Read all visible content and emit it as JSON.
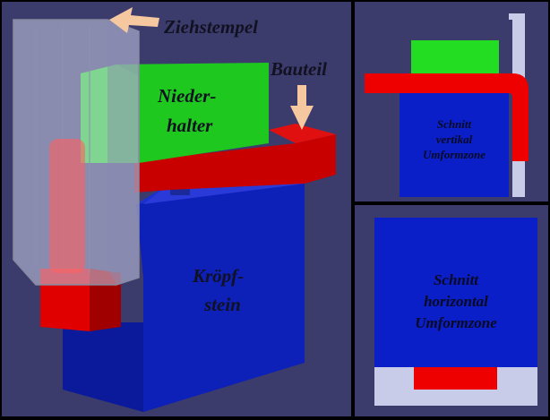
{
  "labels": {
    "ziehstempel": "Ziehstempel",
    "bauteil": "Bauteil",
    "niederhalter_1": "Nieder-",
    "niederhalter_2": "halter",
    "kroepfstein_1": "Kröpf-",
    "kroepfstein_2": "stein"
  },
  "sections": {
    "vertical": [
      "Schnitt",
      "vertikal",
      "Umformzone"
    ],
    "horizontal": [
      "Schnitt",
      "horizontal",
      "Umformzone"
    ]
  },
  "colors": {
    "background": "#3c3c6c",
    "die_blue": "#0a1fc8",
    "part_red": "#f00000",
    "holder_green": "#22dd22",
    "punch_grey": "#c8cce8",
    "arrow": "#f5c8a0"
  }
}
